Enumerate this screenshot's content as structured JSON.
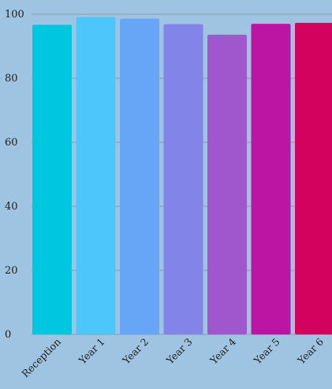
{
  "chart_data": {
    "type": "bar",
    "categories": [
      "Reception",
      "Year 1",
      "Year 2",
      "Year 3",
      "Year 4",
      "Year 5",
      "Year 6"
    ],
    "values": [
      96.7,
      99.1,
      98.6,
      96.9,
      93.6,
      97.0,
      97.3
    ],
    "colors": [
      "#00c7e0",
      "#4cc6fb",
      "#67a5f7",
      "#8384e8",
      "#a056cc",
      "#bc15a4",
      "#d3025e"
    ],
    "ylim": [
      0,
      100
    ],
    "yticks": [
      0,
      20,
      40,
      60,
      80,
      100
    ],
    "xlabel": "",
    "ylabel": "",
    "grid": true,
    "background": "#9ec4e2"
  }
}
